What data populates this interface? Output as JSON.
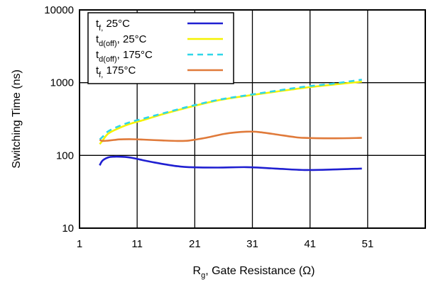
{
  "chart_data": {
    "type": "line",
    "xlabel": {
      "main": "R",
      "sub": "g",
      "rest": ", Gate Resistance (Ω)"
    },
    "ylabel": "Switching Time (ns)",
    "xlim": [
      1,
      61
    ],
    "ylim": [
      10,
      10000
    ],
    "y_scale": "log",
    "grid": true,
    "legend_position": "top-left",
    "x_ticks": [
      "1",
      "11",
      "21",
      "31",
      "41",
      "51"
    ],
    "x_tick_values": [
      1,
      11,
      21,
      31,
      41,
      51
    ],
    "y_ticks": [
      "10",
      "100",
      "1000",
      "10000"
    ],
    "y_tick_values": [
      10,
      100,
      1000,
      10000
    ],
    "series": [
      {
        "name": "tf, 25°C",
        "legend": {
          "main": "t",
          "sub": "f,",
          "rest": " 25°C"
        },
        "color": "#1f1fd1",
        "dash": "solid",
        "x": [
          4.5,
          5,
          6,
          7,
          8,
          9,
          10,
          12,
          14,
          16,
          18,
          20,
          25,
          30,
          35,
          40,
          45,
          50
        ],
        "y": [
          73,
          85,
          94,
          96,
          96,
          95,
          93,
          86,
          80,
          75,
          71,
          69,
          68,
          69,
          66,
          63,
          64,
          66
        ]
      },
      {
        "name": "td(off), 25°C",
        "legend": {
          "main": "t",
          "sub": "d(off)",
          "rest": ", 25°C"
        },
        "color": "#f5f200",
        "dash": "solid",
        "x": [
          4.5,
          5,
          6,
          8,
          10,
          12,
          15,
          20,
          25,
          30,
          35,
          40,
          45,
          50
        ],
        "y": [
          143,
          160,
          200,
          240,
          275,
          305,
          360,
          460,
          570,
          660,
          750,
          850,
          940,
          1030
        ]
      },
      {
        "name": "td(off), 175°C",
        "legend": {
          "main": "t",
          "sub": "d(off)",
          "rest": ", 175°C"
        },
        "color": "#2fd6e8",
        "dash": "dashed",
        "x": [
          4.5,
          5,
          6,
          8,
          10,
          12,
          15,
          20,
          25,
          30,
          35,
          40,
          45,
          50
        ],
        "y": [
          165,
          180,
          215,
          255,
          290,
          320,
          370,
          470,
          580,
          670,
          770,
          880,
          970,
          1100
        ]
      },
      {
        "name": "tf, 175°C",
        "legend": {
          "main": "t",
          "sub": "f,",
          "rest": " 175°C"
        },
        "color": "#e07a3a",
        "dash": "solid",
        "x": [
          4.5,
          5,
          6,
          7,
          8,
          10,
          12,
          15,
          18,
          20,
          23,
          26,
          28,
          30,
          32,
          35,
          38,
          40,
          45,
          50
        ],
        "y": [
          163,
          158,
          160,
          163,
          166,
          167,
          165,
          161,
          158,
          160,
          175,
          197,
          207,
          212,
          210,
          195,
          180,
          174,
          172,
          174
        ]
      }
    ]
  }
}
